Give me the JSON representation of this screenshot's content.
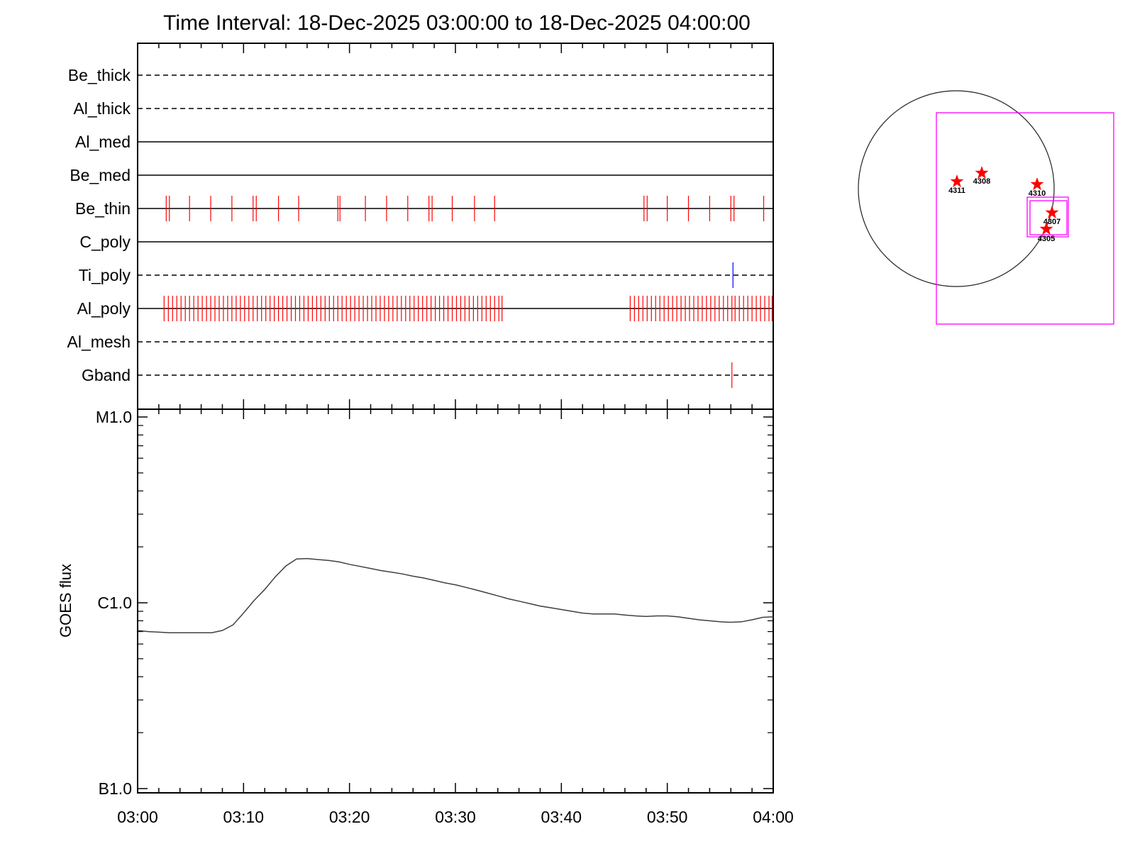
{
  "title": "Time Interval: 18-Dec-2025 03:00:00 to 18-Dec-2025 04:00:00",
  "colors": {
    "event_tick": "#ff0000",
    "ti_tick": "#0000ff",
    "fov_box": "#ff00ff",
    "active_region": "#ff0000",
    "axes": "#000000"
  },
  "filter_panel": {
    "rows": [
      {
        "name": "Be_thick",
        "style": "dashed",
        "events": []
      },
      {
        "name": "Al_thick",
        "style": "dashed",
        "events": []
      },
      {
        "name": "Al_med",
        "style": "solid",
        "events": []
      },
      {
        "name": "Be_med",
        "style": "solid",
        "events": []
      },
      {
        "name": "Be_thin",
        "style": "solid",
        "events": [
          2.7,
          3.0,
          4.9,
          6.9,
          8.9,
          10.9,
          11.2,
          13.3,
          15.2,
          18.9,
          19.1,
          21.5,
          23.5,
          25.5,
          27.5,
          27.8,
          29.7,
          31.8,
          33.7,
          47.8,
          48.1,
          50.0,
          52.0,
          54.0,
          56.0,
          56.3,
          59.1
        ]
      },
      {
        "name": "C_poly",
        "style": "solid",
        "events": []
      },
      {
        "name": "Ti_poly",
        "style": "dashed",
        "events": [
          56.2
        ],
        "color": "ti"
      },
      {
        "name": "Al_poly",
        "style": "solid",
        "events": [
          2.5,
          2.9,
          3.3,
          3.7,
          4.1,
          4.5,
          4.9,
          5.3,
          5.7,
          6.1,
          6.5,
          6.9,
          7.3,
          7.7,
          8.1,
          8.5,
          8.9,
          9.3,
          9.7,
          10.1,
          10.5,
          10.9,
          11.3,
          11.7,
          12.1,
          12.5,
          12.9,
          13.3,
          13.7,
          14.1,
          14.5,
          14.9,
          15.3,
          15.7,
          16.1,
          16.5,
          16.9,
          17.3,
          17.7,
          18.1,
          18.5,
          18.9,
          19.3,
          19.7,
          20.1,
          20.5,
          20.9,
          21.3,
          21.7,
          22.1,
          22.5,
          22.9,
          23.3,
          23.7,
          24.1,
          24.5,
          24.9,
          25.3,
          25.7,
          26.1,
          26.5,
          26.9,
          27.3,
          27.7,
          28.1,
          28.5,
          28.9,
          29.3,
          29.7,
          30.1,
          30.5,
          30.9,
          31.3,
          31.7,
          32.1,
          32.5,
          32.9,
          33.3,
          33.7,
          34.1,
          34.4,
          46.5,
          46.9,
          47.3,
          47.7,
          48.1,
          48.5,
          48.9,
          49.3,
          49.7,
          50.1,
          50.5,
          50.9,
          51.3,
          51.7,
          52.1,
          52.5,
          52.9,
          53.3,
          53.7,
          54.1,
          54.5,
          54.9,
          55.3,
          55.7,
          56.1,
          56.4,
          56.8,
          57.2,
          57.6,
          58.0,
          58.4,
          58.8,
          59.2,
          59.6,
          59.9
        ]
      },
      {
        "name": "Al_mesh",
        "style": "dashed",
        "events": []
      },
      {
        "name": "Gband",
        "style": "dashed",
        "events": [
          56.1
        ],
        "color": "gband"
      }
    ]
  },
  "chart_data": {
    "type": "line",
    "series": [],
    "x": [
      0,
      1,
      2,
      3,
      4,
      5,
      6,
      7,
      8,
      9,
      10,
      11,
      12,
      13,
      14,
      15,
      16,
      17,
      18,
      19,
      20,
      21,
      22,
      23,
      24,
      25,
      26,
      27,
      28,
      29,
      30,
      31,
      32,
      33,
      34,
      35,
      36,
      37,
      38,
      39,
      40,
      41,
      42,
      43,
      44,
      45,
      46,
      47,
      48,
      49,
      50,
      51,
      52,
      53,
      54,
      55,
      56,
      57,
      58,
      59,
      60
    ],
    "x_units": "minutes after 03:00 UT",
    "y": [
      7.1e-07,
      7e-07,
      6.95e-07,
      6.9e-07,
      6.9e-07,
      6.9e-07,
      6.9e-07,
      6.9e-07,
      7.1e-07,
      7.6e-07,
      8.8e-07,
      1.03e-06,
      1.18e-06,
      1.38e-06,
      1.58e-06,
      1.72e-06,
      1.73e-06,
      1.71e-06,
      1.69e-06,
      1.66e-06,
      1.61e-06,
      1.57e-06,
      1.53e-06,
      1.49e-06,
      1.46e-06,
      1.43e-06,
      1.39e-06,
      1.36e-06,
      1.32e-06,
      1.28e-06,
      1.25e-06,
      1.21e-06,
      1.17e-06,
      1.13e-06,
      1.09e-06,
      1.05e-06,
      1.02e-06,
      9.9e-07,
      9.6e-07,
      9.4e-07,
      9.2e-07,
      9e-07,
      8.8e-07,
      8.7e-07,
      8.7e-07,
      8.7e-07,
      8.6e-07,
      8.5e-07,
      8.45e-07,
      8.5e-07,
      8.5e-07,
      8.4e-07,
      8.25e-07,
      8.1e-07,
      8e-07,
      7.9e-07,
      7.85e-07,
      7.9e-07,
      8.1e-07,
      8.35e-07,
      8.4e-07
    ],
    "x_ticks": [
      "03:00",
      "03:10",
      "03:20",
      "03:30",
      "03:40",
      "03:50",
      "04:00"
    ],
    "xlim": [
      0,
      60
    ],
    "ylim": [
      1e-07,
      1e-05
    ],
    "yscale": "log",
    "y_ticks": [
      {
        "label": "M1.0",
        "value": 1e-05
      },
      {
        "label": "C1.0",
        "value": 1e-06
      },
      {
        "label": "B1.0",
        "value": 1e-07
      }
    ],
    "ylabel": "GOES flux",
    "xlabel": "",
    "grid": false
  },
  "sun_map": {
    "active_regions": [
      {
        "label": "4311"
      },
      {
        "label": "4308"
      },
      {
        "label": "4310"
      },
      {
        "label": "4307"
      },
      {
        "label": "4305"
      }
    ]
  }
}
